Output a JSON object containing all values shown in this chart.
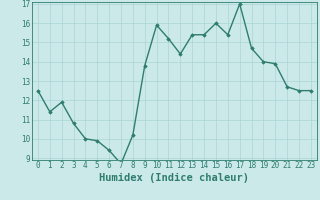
{
  "x": [
    0,
    1,
    2,
    3,
    4,
    5,
    6,
    7,
    8,
    9,
    10,
    11,
    12,
    13,
    14,
    15,
    16,
    17,
    18,
    19,
    20,
    21,
    22,
    23
  ],
  "y": [
    12.5,
    11.4,
    11.9,
    10.8,
    10.0,
    9.9,
    9.4,
    8.7,
    10.2,
    13.8,
    15.9,
    15.2,
    14.4,
    15.4,
    15.4,
    16.0,
    15.4,
    17.0,
    14.7,
    14.0,
    13.9,
    12.7,
    12.5,
    12.5
  ],
  "line_color": "#2e7d6e",
  "marker": "D",
  "marker_size": 1.8,
  "bg_color": "#cce9e9",
  "grid_color": "#aad4d4",
  "xlabel": "Humidex (Indice chaleur)",
  "ylim": [
    9,
    17
  ],
  "xlim": [
    -0.5,
    23.5
  ],
  "yticks": [
    9,
    10,
    11,
    12,
    13,
    14,
    15,
    16,
    17
  ],
  "xticks": [
    0,
    1,
    2,
    3,
    4,
    5,
    6,
    7,
    8,
    9,
    10,
    11,
    12,
    13,
    14,
    15,
    16,
    17,
    18,
    19,
    20,
    21,
    22,
    23
  ],
  "tick_label_fontsize": 5.5,
  "xlabel_fontsize": 7.5,
  "linewidth": 1.0,
  "spine_color": "#2e7d6e"
}
